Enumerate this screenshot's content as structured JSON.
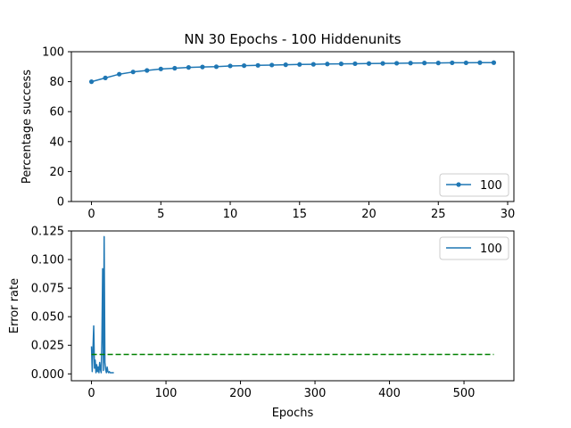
{
  "chart_data": [
    {
      "type": "line",
      "title": "NN 30 Epochs - 100 Hiddenunits",
      "xlabel": "",
      "ylabel": "Percentage success",
      "xlim": [
        -1.45,
        30.45
      ],
      "ylim": [
        0,
        100
      ],
      "xticks": [
        0,
        5,
        10,
        15,
        20,
        25,
        30
      ],
      "yticks": [
        0,
        20,
        40,
        60,
        80,
        100
      ],
      "legend": {
        "position": "bottom-right",
        "entries": [
          "100"
        ]
      },
      "marker": "circle",
      "grid": false,
      "series": [
        {
          "name": "100",
          "color": "#1f77b4",
          "x": [
            0,
            1,
            2,
            3,
            4,
            5,
            6,
            7,
            8,
            9,
            10,
            11,
            12,
            13,
            14,
            15,
            16,
            17,
            18,
            19,
            20,
            21,
            22,
            23,
            24,
            25,
            26,
            27,
            28,
            29
          ],
          "values": [
            80.0,
            82.5,
            85.0,
            86.5,
            87.5,
            88.5,
            89.0,
            89.5,
            89.8,
            90.0,
            90.5,
            90.7,
            90.9,
            91.1,
            91.3,
            91.5,
            91.6,
            91.8,
            91.9,
            92.0,
            92.1,
            92.2,
            92.3,
            92.4,
            92.5,
            92.5,
            92.6,
            92.6,
            92.7,
            92.7
          ]
        }
      ]
    },
    {
      "type": "line",
      "title": "",
      "xlabel": "Epochs",
      "ylabel": "Error rate",
      "xlim": [
        -27,
        567
      ],
      "ylim": [
        -0.006,
        0.125
      ],
      "xticks": [
        0,
        100,
        200,
        300,
        400,
        500
      ],
      "yticks": [
        "0.000",
        "0.025",
        "0.050",
        "0.075",
        "0.100",
        "0.125"
      ],
      "legend": {
        "position": "top-right",
        "entries": [
          "100"
        ]
      },
      "grid": false,
      "series": [
        {
          "name": "100",
          "color": "#1f77b4",
          "x": [
            0,
            1,
            2,
            3,
            4,
            5,
            6,
            7,
            8,
            9,
            10,
            11,
            12,
            13,
            14,
            15,
            16,
            17,
            18,
            19,
            20,
            21,
            22,
            23,
            24,
            25,
            26,
            27,
            28,
            29,
            30
          ],
          "values": [
            0.024,
            0.002,
            0.022,
            0.042,
            0.005,
            0.012,
            0.001,
            0.008,
            0.002,
            0.006,
            0.001,
            0.01,
            0.004,
            0.001,
            0.03,
            0.092,
            0.003,
            0.12,
            0.01,
            0.004,
            0.001,
            0.006,
            0.002,
            0.001,
            0.002,
            0.001,
            0.001,
            0.001,
            0.001,
            0.001,
            0.001
          ]
        },
        {
          "color": "#008000",
          "style": "dashed",
          "x": [
            0,
            540
          ],
          "values": [
            0.017,
            0.017
          ]
        }
      ]
    }
  ]
}
